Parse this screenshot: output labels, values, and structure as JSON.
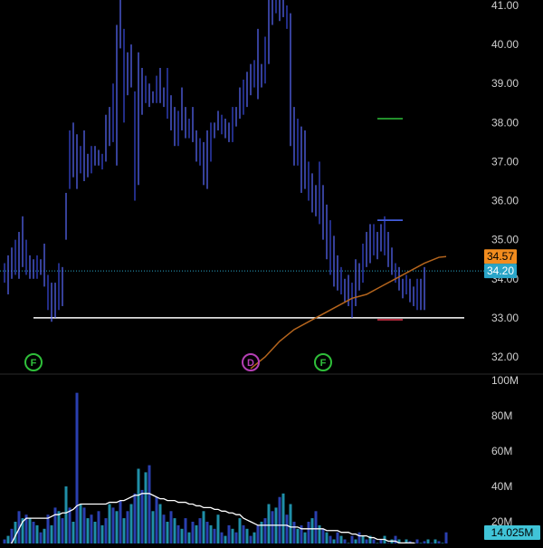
{
  "colors": {
    "background": "#000000",
    "bar_up": "#5b6cff",
    "bar_down": "#3a4be0",
    "axis_text": "#d0d0d0",
    "grid": "#1a1a1a",
    "divider": "#2a2a2a",
    "support_line": "#ffffff",
    "moving_average": "#b5651d",
    "last_price_line": "#2aa5c8",
    "badge_ma": "#f28c1e",
    "badge_price": "#2aa5c8",
    "badge_volume": "#40c4d8",
    "marker_f": "#2fbf3a",
    "marker_d": "#b53fb5",
    "level_green": "#2fbf3a",
    "level_blue": "#4d6cff",
    "level_red": "#e0334c",
    "volume_a": "#2a3fb0",
    "volume_b": "#1f8fa8",
    "volume_avg_line": "#ffffff"
  },
  "chart_data": [
    {
      "type": "ohlc",
      "panel": "price",
      "ylim": [
        31.5,
        41.2
      ],
      "y_ticks": [
        "41.00",
        "40.00",
        "39.00",
        "38.00",
        "37.00",
        "36.00",
        "35.00",
        "34.00",
        "33.00",
        "32.00"
      ],
      "y_tick_values": [
        41,
        40,
        39,
        38,
        37,
        36,
        35,
        34,
        33,
        32
      ],
      "bars": [
        {
          "h": 34.4,
          "l": 33.9
        },
        {
          "h": 34.6,
          "l": 33.6
        },
        {
          "h": 34.8,
          "l": 34.0
        },
        {
          "h": 35.0,
          "l": 34.1
        },
        {
          "h": 35.2,
          "l": 34.0
        },
        {
          "h": 35.6,
          "l": 34.3
        },
        {
          "h": 35.0,
          "l": 34.1
        },
        {
          "h": 34.6,
          "l": 34.0
        },
        {
          "h": 34.5,
          "l": 34.0
        },
        {
          "h": 34.6,
          "l": 34.0
        },
        {
          "h": 34.5,
          "l": 34.1
        },
        {
          "h": 34.9,
          "l": 33.8
        },
        {
          "h": 34.1,
          "l": 33.2
        },
        {
          "h": 33.9,
          "l": 32.9
        },
        {
          "h": 33.9,
          "l": 33.0
        },
        {
          "h": 34.4,
          "l": 33.2
        },
        {
          "h": 34.3,
          "l": 33.3
        },
        {
          "h": 36.2,
          "l": 35.0
        },
        {
          "h": 37.8,
          "l": 36.3
        },
        {
          "h": 38.0,
          "l": 36.6
        },
        {
          "h": 37.7,
          "l": 36.3
        },
        {
          "h": 37.4,
          "l": 36.7
        },
        {
          "h": 37.8,
          "l": 36.5
        },
        {
          "h": 37.2,
          "l": 36.6
        },
        {
          "h": 37.4,
          "l": 36.7
        },
        {
          "h": 37.4,
          "l": 36.9
        },
        {
          "h": 37.3,
          "l": 36.9
        },
        {
          "h": 37.2,
          "l": 36.8
        },
        {
          "h": 38.2,
          "l": 37.0
        },
        {
          "h": 38.4,
          "l": 37.4
        },
        {
          "h": 39.0,
          "l": 37.5
        },
        {
          "h": 40.5,
          "l": 36.9
        },
        {
          "h": 41.2,
          "l": 39.9
        },
        {
          "h": 40.4,
          "l": 38.0
        },
        {
          "h": 39.8,
          "l": 38.7
        },
        {
          "h": 40.0,
          "l": 38.9
        },
        {
          "h": 38.8,
          "l": 36.0
        },
        {
          "h": 39.8,
          "l": 36.4
        },
        {
          "h": 39.4,
          "l": 38.2
        },
        {
          "h": 39.2,
          "l": 38.5
        },
        {
          "h": 39.0,
          "l": 38.4
        },
        {
          "h": 38.8,
          "l": 38.5
        },
        {
          "h": 39.2,
          "l": 38.5
        },
        {
          "h": 39.4,
          "l": 38.5
        },
        {
          "h": 38.9,
          "l": 38.4
        },
        {
          "h": 39.4,
          "l": 38.1
        },
        {
          "h": 38.7,
          "l": 37.8
        },
        {
          "h": 38.4,
          "l": 37.4
        },
        {
          "h": 38.3,
          "l": 37.4
        },
        {
          "h": 38.9,
          "l": 37.8
        },
        {
          "h": 38.4,
          "l": 37.6
        },
        {
          "h": 38.1,
          "l": 37.6
        },
        {
          "h": 38.4,
          "l": 37.5
        },
        {
          "h": 37.8,
          "l": 37.0
        },
        {
          "h": 37.6,
          "l": 36.9
        },
        {
          "h": 37.5,
          "l": 36.4
        },
        {
          "h": 37.8,
          "l": 36.3
        },
        {
          "h": 38.0,
          "l": 37.0
        },
        {
          "h": 38.0,
          "l": 37.6
        },
        {
          "h": 38.3,
          "l": 37.8
        },
        {
          "h": 38.2,
          "l": 37.7
        },
        {
          "h": 38.1,
          "l": 37.6
        },
        {
          "h": 38.0,
          "l": 37.5
        },
        {
          "h": 38.4,
          "l": 37.5
        },
        {
          "h": 38.4,
          "l": 37.9
        },
        {
          "h": 38.9,
          "l": 38.1
        },
        {
          "h": 39.1,
          "l": 38.2
        },
        {
          "h": 39.3,
          "l": 38.4
        },
        {
          "h": 39.5,
          "l": 38.7
        },
        {
          "h": 39.6,
          "l": 38.9
        },
        {
          "h": 40.4,
          "l": 38.6
        },
        {
          "h": 39.5,
          "l": 38.9
        },
        {
          "h": 40.2,
          "l": 39.0
        },
        {
          "h": 41.4,
          "l": 39.5
        },
        {
          "h": 41.2,
          "l": 40.5
        },
        {
          "h": 41.4,
          "l": 40.8
        },
        {
          "h": 41.3,
          "l": 40.6
        },
        {
          "h": 41.2,
          "l": 40.7
        },
        {
          "h": 41.0,
          "l": 40.4
        },
        {
          "h": 40.8,
          "l": 37.4
        },
        {
          "h": 38.4,
          "l": 36.9
        },
        {
          "h": 38.1,
          "l": 36.9
        },
        {
          "h": 37.9,
          "l": 36.2
        },
        {
          "h": 37.8,
          "l": 36.3
        },
        {
          "h": 37.0,
          "l": 36.0
        },
        {
          "h": 36.7,
          "l": 35.7
        },
        {
          "h": 36.4,
          "l": 35.6
        },
        {
          "h": 37.0,
          "l": 35.4
        },
        {
          "h": 36.4,
          "l": 35.0
        },
        {
          "h": 35.9,
          "l": 34.5
        },
        {
          "h": 35.5,
          "l": 34.1
        },
        {
          "h": 35.1,
          "l": 33.8
        },
        {
          "h": 34.6,
          "l": 33.7
        },
        {
          "h": 34.3,
          "l": 33.6
        },
        {
          "h": 34.0,
          "l": 33.4
        },
        {
          "h": 34.1,
          "l": 33.3
        },
        {
          "h": 33.9,
          "l": 33.0
        },
        {
          "h": 34.5,
          "l": 33.3
        },
        {
          "h": 34.4,
          "l": 33.7
        },
        {
          "h": 34.9,
          "l": 33.9
        },
        {
          "h": 35.2,
          "l": 34.3
        },
        {
          "h": 35.4,
          "l": 34.4
        },
        {
          "h": 35.4,
          "l": 34.6
        },
        {
          "h": 35.2,
          "l": 34.5
        },
        {
          "h": 35.4,
          "l": 34.7
        },
        {
          "h": 35.6,
          "l": 34.6
        },
        {
          "h": 35.2,
          "l": 34.3
        },
        {
          "h": 34.8,
          "l": 34.1
        },
        {
          "h": 34.4,
          "l": 33.9
        },
        {
          "h": 34.3,
          "l": 33.7
        },
        {
          "h": 34.0,
          "l": 33.5
        },
        {
          "h": 34.1,
          "l": 33.6
        },
        {
          "h": 34.0,
          "l": 33.4
        },
        {
          "h": 33.8,
          "l": 33.3
        },
        {
          "h": 34.0,
          "l": 33.2
        },
        {
          "h": 34.0,
          "l": 33.2
        },
        {
          "h": 34.3,
          "l": 33.2
        }
      ],
      "moving_average": [
        {
          "bar": 68,
          "v": 31.7
        },
        {
          "bar": 72,
          "v": 32.0
        },
        {
          "bar": 76,
          "v": 32.4
        },
        {
          "bar": 80,
          "v": 32.7
        },
        {
          "bar": 84,
          "v": 32.9
        },
        {
          "bar": 88,
          "v": 33.1
        },
        {
          "bar": 92,
          "v": 33.3
        },
        {
          "bar": 96,
          "v": 33.5
        },
        {
          "bar": 100,
          "v": 33.6
        },
        {
          "bar": 104,
          "v": 33.8
        },
        {
          "bar": 108,
          "v": 34.0
        },
        {
          "bar": 112,
          "v": 34.2
        },
        {
          "bar": 116,
          "v": 34.4
        },
        {
          "bar": 120,
          "v": 34.55
        },
        {
          "bar": 122,
          "v": 34.57
        }
      ],
      "support_level": {
        "value": 33.0,
        "from_bar": 8,
        "to_bar": 127
      },
      "last_price": 34.2,
      "extra_levels": [
        {
          "color_key": "level_green",
          "value": 38.1,
          "from_bar": 103,
          "to_bar": 110
        },
        {
          "color_key": "level_blue",
          "value": 35.5,
          "from_bar": 103,
          "to_bar": 110
        },
        {
          "color_key": "level_red",
          "value": 32.95,
          "from_bar": 103,
          "to_bar": 110
        }
      ],
      "badges": [
        {
          "text": "34.57",
          "value": 34.57,
          "color_key": "badge_ma",
          "text_color": "#000000"
        },
        {
          "text": "34.20",
          "value": 34.2,
          "color_key": "badge_price",
          "text_color": "#ffffff"
        }
      ],
      "event_markers": [
        {
          "label": "F",
          "bar": 8,
          "color_key": "marker_f"
        },
        {
          "label": "D",
          "bar": 68,
          "color_key": "marker_d"
        },
        {
          "label": "F",
          "bar": 88,
          "color_key": "marker_f"
        }
      ]
    },
    {
      "type": "bar",
      "panel": "volume",
      "ylim": [
        0,
        100
      ],
      "y_ticks": [
        "100M",
        "80M",
        "60M",
        "40M",
        "20M"
      ],
      "y_tick_values": [
        100,
        80,
        60,
        40,
        20
      ],
      "values": [
        10,
        12,
        16,
        20,
        26,
        22,
        24,
        22,
        20,
        18,
        14,
        16,
        24,
        18,
        28,
        26,
        22,
        40,
        28,
        20,
        93,
        30,
        28,
        22,
        24,
        20,
        26,
        18,
        22,
        30,
        28,
        26,
        32,
        22,
        26,
        30,
        36,
        50,
        38,
        48,
        52,
        26,
        34,
        30,
        24,
        20,
        26,
        22,
        18,
        16,
        22,
        14,
        20,
        18,
        22,
        26,
        20,
        18,
        16,
        24,
        14,
        12,
        18,
        16,
        14,
        22,
        18,
        16,
        12,
        14,
        18,
        20,
        22,
        30,
        26,
        28,
        34,
        36,
        24,
        30,
        20,
        16,
        18,
        14,
        20,
        22,
        26,
        18,
        16,
        14,
        12,
        10,
        14,
        12,
        10,
        8,
        12,
        10,
        14,
        12,
        10,
        12,
        10,
        8,
        10,
        12,
        8,
        10,
        12,
        10,
        8,
        10,
        9,
        8,
        10,
        8,
        9,
        10,
        8,
        10,
        9,
        8,
        14
      ],
      "average_line": [
        4,
        6,
        8,
        12,
        16,
        20,
        22,
        22,
        22,
        22,
        22,
        22,
        22,
        23,
        24,
        24,
        25,
        25,
        26,
        27,
        29,
        30,
        30,
        30,
        30,
        30,
        30,
        30,
        30,
        31,
        31,
        31,
        32,
        32,
        33,
        34,
        35,
        35,
        36,
        36,
        36,
        35,
        34,
        33,
        33,
        32,
        32,
        32,
        31,
        31,
        31,
        30,
        30,
        29,
        29,
        28,
        28,
        28,
        27,
        27,
        26,
        26,
        25,
        25,
        24,
        24,
        22,
        21,
        20,
        19,
        18,
        18,
        18,
        18,
        18,
        18,
        18,
        18,
        18,
        17,
        17,
        17,
        16,
        16,
        16,
        16,
        16,
        16,
        16,
        15,
        15,
        15,
        15,
        14,
        14,
        14,
        13,
        13,
        12,
        12,
        12,
        11,
        11,
        10,
        10,
        10,
        9,
        9,
        9,
        8,
        8,
        8,
        8,
        8,
        7,
        7,
        7,
        7,
        7,
        6,
        6,
        6,
        6
      ],
      "last_value_badge": "14.025M"
    }
  ]
}
